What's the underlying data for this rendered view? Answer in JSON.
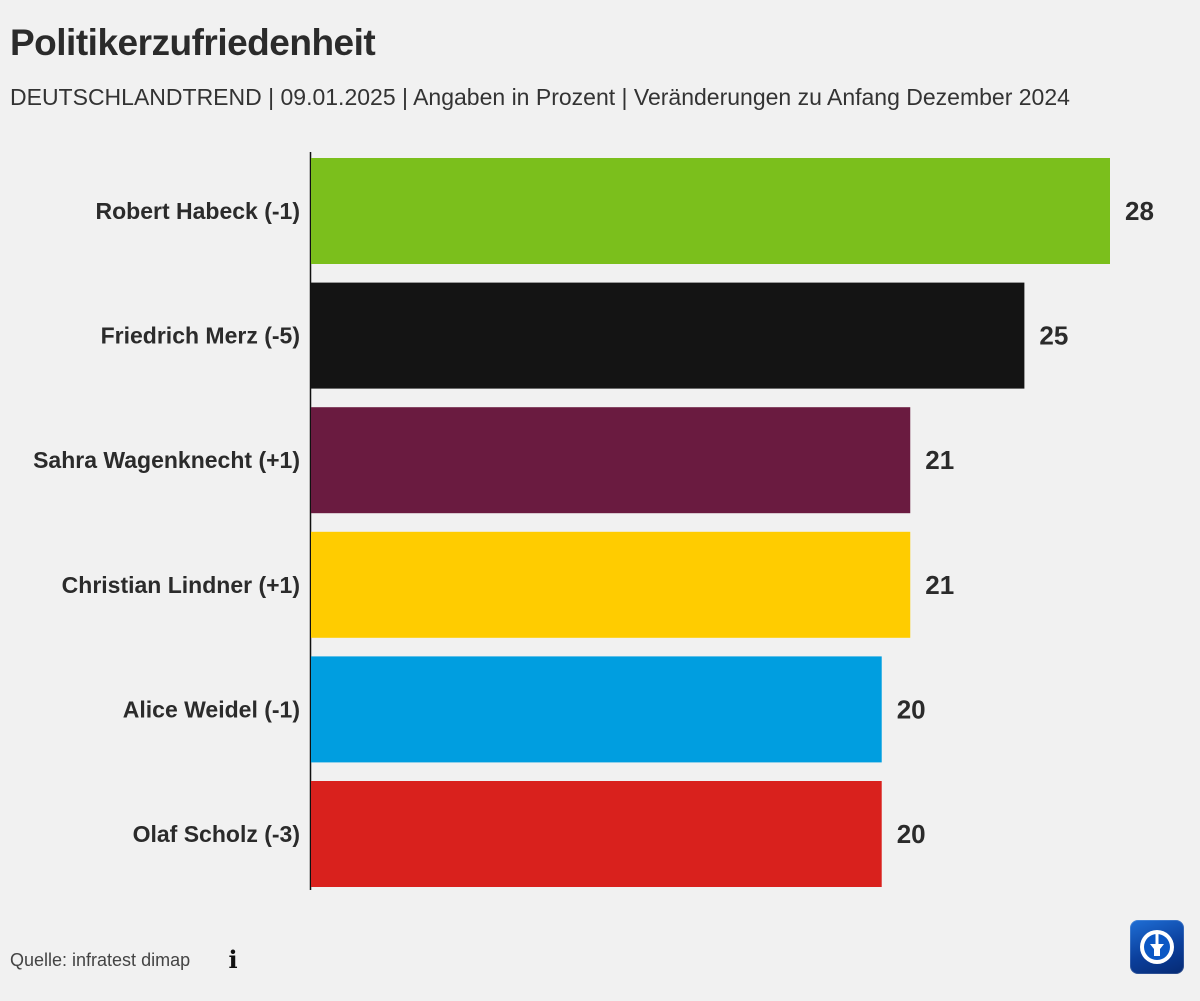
{
  "header": {
    "title": "Politikerzufriedenheit",
    "subtitle": "DEUTSCHLANDTREND | 09.01.2025 | Angaben in Prozent | Veränderungen zu Anfang Dezember 2024"
  },
  "footer": {
    "source": "Quelle: infratest dimap",
    "info_icon": "info-icon",
    "logo_icon": "tagesschau-logo-icon"
  },
  "chart_data": {
    "type": "bar",
    "orientation": "horizontal",
    "title": "Politikerzufriedenheit",
    "subtitle": "DEUTSCHLANDTREND | 09.01.2025 | Angaben in Prozent | Veränderungen zu Anfang Dezember 2024",
    "categories": [
      "Robert Habeck (-1)",
      "Friedrich Merz (-5)",
      "Sahra Wagenknecht (+1)",
      "Christian Lindner (+1)",
      "Alice Weidel (-1)",
      "Olaf Scholz (-3)"
    ],
    "values": [
      28,
      25,
      21,
      21,
      20,
      20
    ],
    "colors": [
      "#7bbf1c",
      "#141414",
      "#6a1b40",
      "#ffcc00",
      "#009ee0",
      "#d9211d"
    ],
    "xlim": [
      0,
      28
    ],
    "grid": false,
    "legend": "none"
  }
}
